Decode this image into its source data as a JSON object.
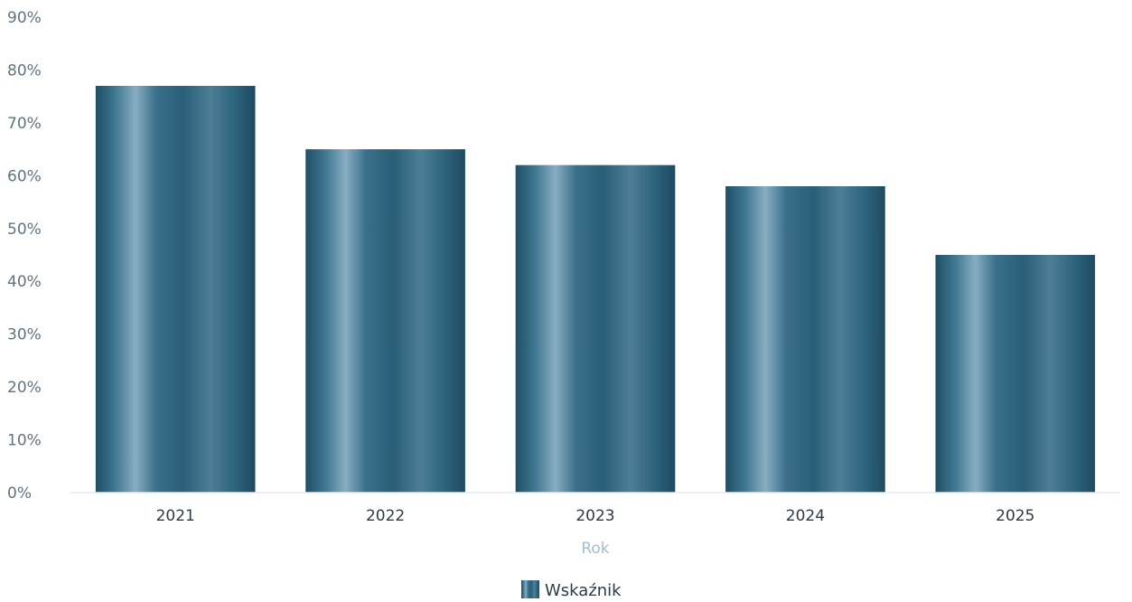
{
  "chart_data": {
    "type": "bar",
    "categories": [
      "2021",
      "2022",
      "2023",
      "2024",
      "2025"
    ],
    "series": [
      {
        "name": "Wskaźnik",
        "values": [
          77,
          65,
          62,
          58,
          45
        ]
      }
    ],
    "xlabel": "Rok",
    "ylabel": "",
    "ylim": [
      0,
      90
    ],
    "yticks": [
      "0%",
      "10%",
      "20%",
      "30%",
      "40%",
      "50%",
      "60%",
      "70%",
      "80%",
      "90%"
    ],
    "y_unit": "%",
    "grid": false,
    "legend": {
      "placement": "bottom-center",
      "entries": [
        "Wskaźnik"
      ]
    },
    "colors": {
      "bar": "#2f6b86",
      "bar_highlight": "#7fa8bf",
      "bar_dark": "#1f4f66",
      "baseline": "#e3ecf2"
    }
  }
}
